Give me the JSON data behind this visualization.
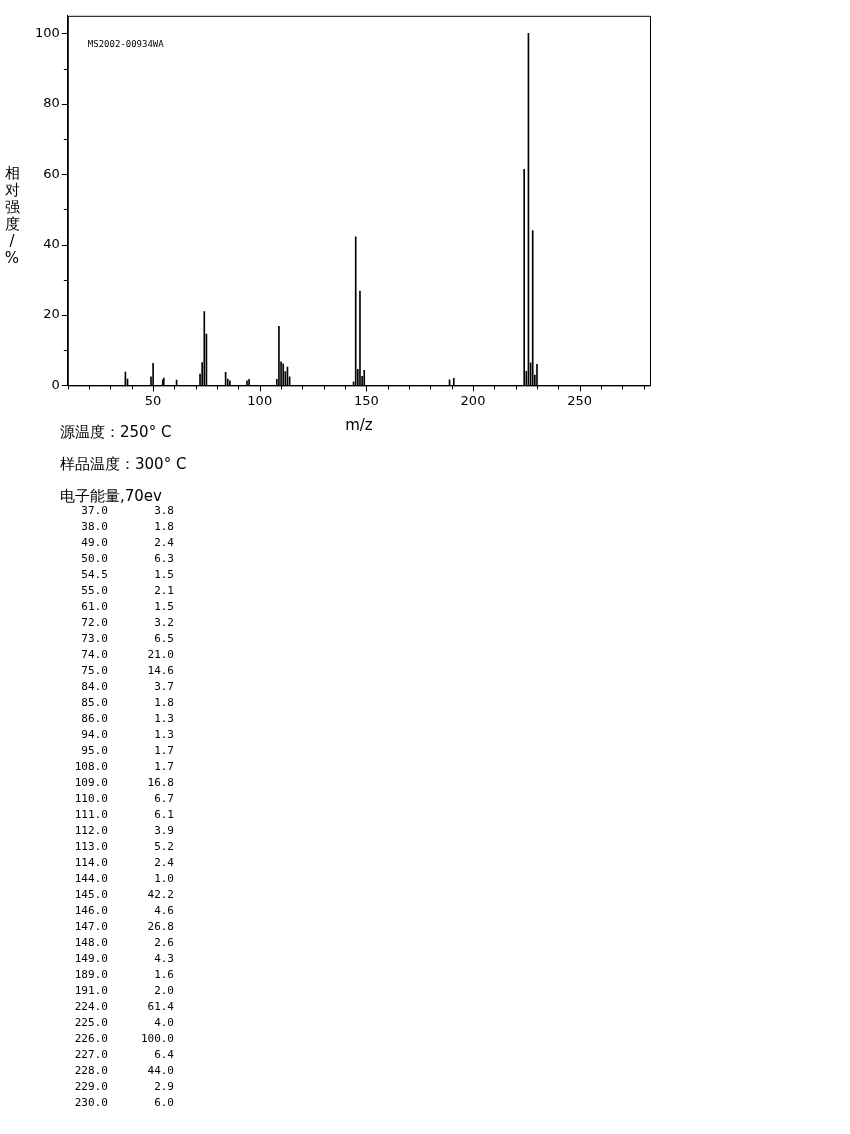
{
  "chart_data": {
    "type": "bar",
    "xlabel": "m/z",
    "ylabel": "相对强度/%",
    "annotations": [
      "MS2002-00934WA",
      "源温度：250° C",
      "样品温度：300° C",
      "电子能量,70ev",
      "37.0       3.8",
      "38.0       1.8",
      "49.0       2.4",
      "50.0       6.3",
      "54.5       1.5",
      "55.0       2.1",
      "61.0       1.5",
      "72.0       3.2",
      "73.0       6.5",
      "74.0      21.0",
      "75.0      14.6",
      "84.0       3.7",
      "85.0       1.8",
      "86.0       1.3",
      "94.0       1.3",
      "95.0       1.7",
      "108.0       1.7",
      "109.0      16.8",
      "110.0       6.7",
      "111.0       6.1",
      "112.0       3.9",
      "113.0       5.2",
      "114.0       2.4",
      "144.0       1.0",
      "145.0      42.2",
      "146.0       4.6",
      "147.0      26.8",
      "148.0       2.6",
      "149.0       4.3",
      "189.0       1.6",
      "191.0       2.0",
      "224.0      61.4",
      "225.0       4.0",
      "226.0     100.0",
      "227.0       6.4",
      "228.0      44.0",
      "229.0       2.9",
      "230.0       6.0"
    ],
    "x": [
      37,
      38,
      49,
      50,
      54.5,
      55,
      61,
      72,
      73,
      74,
      75,
      84,
      85,
      86,
      94,
      95,
      108,
      109,
      110,
      111,
      112,
      113,
      114,
      144,
      145,
      146,
      147,
      148,
      149,
      189,
      191,
      224,
      225,
      226,
      227,
      228,
      229,
      230
    ],
    "values": [
      3.8,
      1.8,
      2.4,
      6.3,
      1.5,
      2.1,
      1.5,
      3.2,
      6.5,
      21.0,
      14.6,
      3.7,
      1.8,
      1.3,
      1.3,
      1.7,
      1.7,
      16.8,
      6.7,
      6.1,
      3.9,
      5.2,
      2.4,
      1.0,
      42.2,
      4.6,
      26.8,
      2.6,
      4.3,
      1.6,
      2.0,
      61.4,
      4.0,
      100.0,
      6.4,
      44.0,
      2.9,
      6.0
    ],
    "color": "#000000",
    "xlim": [
      10,
      283
    ],
    "xticks": [
      {
        "value": 10,
        "label": null
      },
      {
        "value": 20,
        "label": null
      },
      {
        "value": 30,
        "label": null
      },
      {
        "value": 40,
        "label": null
      },
      50,
      {
        "value": 60,
        "label": null
      },
      {
        "value": 70,
        "label": null
      },
      {
        "value": 80,
        "label": null
      },
      {
        "value": 90,
        "label": null
      },
      100,
      {
        "value": 110,
        "label": null
      },
      {
        "value": 120,
        "label": null
      },
      {
        "value": 130,
        "label": null
      },
      {
        "value": 140,
        "label": null
      },
      150,
      {
        "value": 160,
        "label": null
      },
      {
        "value": 170,
        "label": null
      },
      {
        "value": 180,
        "label": null
      },
      {
        "value": 190,
        "label": null
      },
      200,
      {
        "value": 210,
        "label": null
      },
      {
        "value": 220,
        "label": null
      },
      {
        "value": 230,
        "label": null
      },
      {
        "value": 240,
        "label": null
      },
      250,
      {
        "value": 260,
        "label": null
      },
      {
        "value": 270,
        "label": null
      },
      {
        "value": 280,
        "label": null
      }
    ],
    "ylim": [
      0,
      105
    ],
    "yticks": [
      0,
      {
        "value": 10,
        "label": null
      },
      20,
      {
        "value": 30,
        "label": null
      },
      40,
      {
        "value": 50,
        "label": null
      },
      60,
      {
        "value": 70,
        "label": null
      },
      80,
      {
        "value": 90,
        "label": null
      },
      100
    ],
    "grid": false,
    "legend": false
  }
}
